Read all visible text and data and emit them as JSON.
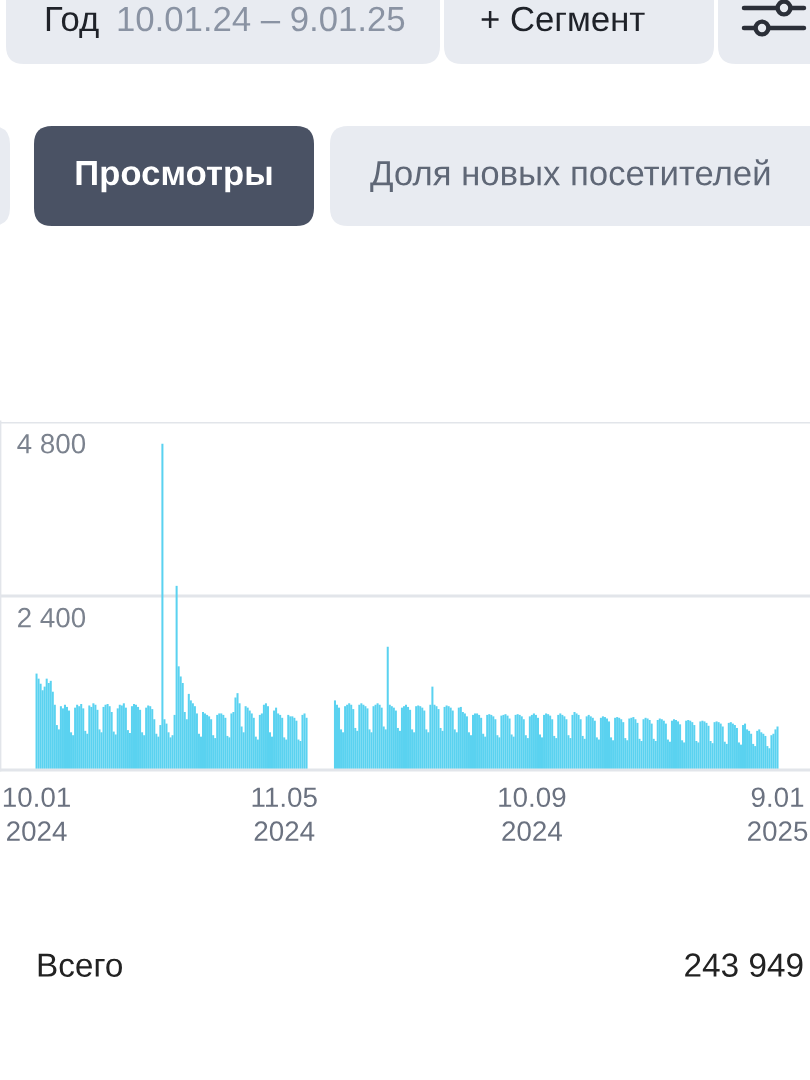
{
  "chart_data": {
    "type": "bar",
    "title": "Просмотры",
    "annotations": [
      "Год",
      "10.01.24 – 9.01.25",
      "+ Сегмент",
      "Доля новых посетителей",
      "Всего",
      "243 949"
    ],
    "x": [
      "2024-01-10",
      "2024-01-11",
      "2024-01-12",
      "2024-01-13",
      "2024-01-14",
      "2024-01-15",
      "2024-01-16",
      "2024-01-17",
      "2024-01-18",
      "2024-01-19",
      "2024-01-20",
      "2024-01-21",
      "2024-01-22",
      "2024-01-23",
      "2024-01-24",
      "2024-01-25",
      "2024-01-26",
      "2024-01-27",
      "2024-01-28",
      "2024-01-29",
      "2024-01-30",
      "2024-01-31",
      "2024-02-01",
      "2024-02-02",
      "2024-02-03",
      "2024-02-04",
      "2024-02-05",
      "2024-02-06",
      "2024-02-07",
      "2024-02-08",
      "2024-02-09",
      "2024-02-10",
      "2024-02-11",
      "2024-02-12",
      "2024-02-13",
      "2024-02-14",
      "2024-02-15",
      "2024-02-16",
      "2024-02-17",
      "2024-02-18",
      "2024-02-19",
      "2024-02-20",
      "2024-02-21",
      "2024-02-22",
      "2024-02-23",
      "2024-02-24",
      "2024-02-25",
      "2024-02-26",
      "2024-02-27",
      "2024-02-28",
      "2024-02-29",
      "2024-03-01",
      "2024-03-02",
      "2024-03-03",
      "2024-03-04",
      "2024-03-05",
      "2024-03-06",
      "2024-03-07",
      "2024-03-08",
      "2024-03-09",
      "2024-03-10",
      "2024-03-11",
      "2024-03-12",
      "2024-03-13",
      "2024-03-14",
      "2024-03-15",
      "2024-03-16",
      "2024-03-17",
      "2024-03-18",
      "2024-03-19",
      "2024-03-20",
      "2024-03-21",
      "2024-03-22",
      "2024-03-23",
      "2024-03-24",
      "2024-03-25",
      "2024-03-26",
      "2024-03-27",
      "2024-03-28",
      "2024-03-29",
      "2024-03-30",
      "2024-03-31",
      "2024-04-01",
      "2024-04-02",
      "2024-04-03",
      "2024-04-04",
      "2024-04-05",
      "2024-04-06",
      "2024-04-07",
      "2024-04-08",
      "2024-04-09",
      "2024-04-10",
      "2024-04-11",
      "2024-04-12",
      "2024-04-13",
      "2024-04-14",
      "2024-04-15",
      "2024-04-16",
      "2024-04-17",
      "2024-04-18",
      "2024-04-19",
      "2024-04-20",
      "2024-04-21",
      "2024-04-22",
      "2024-04-23",
      "2024-04-24",
      "2024-04-25",
      "2024-04-26",
      "2024-04-27",
      "2024-04-28",
      "2024-04-29",
      "2024-04-30",
      "2024-05-01",
      "2024-05-02",
      "2024-05-03",
      "2024-05-04",
      "2024-05-05",
      "2024-05-06",
      "2024-05-07",
      "2024-05-08",
      "2024-05-09",
      "2024-05-10",
      "2024-05-11",
      "2024-05-12",
      "2024-05-13",
      "2024-05-14",
      "2024-05-15",
      "2024-05-16",
      "2024-05-17",
      "2024-05-18",
      "2024-05-19",
      "2024-05-20",
      "2024-05-21",
      "2024-05-22",
      "2024-05-23",
      "2024-05-24",
      "2024-05-25",
      "2024-05-26",
      "2024-05-27",
      "2024-05-28",
      "2024-05-29",
      "2024-05-30",
      "2024-05-31",
      "2024-06-01",
      "2024-06-02",
      "2024-06-03",
      "2024-06-04",
      "2024-06-05",
      "2024-06-06",
      "2024-06-07",
      "2024-06-08",
      "2024-06-09",
      "2024-06-10",
      "2024-06-11",
      "2024-06-12",
      "2024-06-13",
      "2024-06-14",
      "2024-06-15",
      "2024-06-16",
      "2024-06-17",
      "2024-06-18",
      "2024-06-19",
      "2024-06-20",
      "2024-06-21",
      "2024-06-22",
      "2024-06-23",
      "2024-06-24",
      "2024-06-25",
      "2024-06-26",
      "2024-06-27",
      "2024-06-28",
      "2024-06-29",
      "2024-06-30",
      "2024-07-01",
      "2024-07-02",
      "2024-07-03",
      "2024-07-04",
      "2024-07-05",
      "2024-07-06",
      "2024-07-07",
      "2024-07-08",
      "2024-07-09",
      "2024-07-10",
      "2024-07-11",
      "2024-07-12",
      "2024-07-13",
      "2024-07-14",
      "2024-07-15",
      "2024-07-16",
      "2024-07-17",
      "2024-07-18",
      "2024-07-19",
      "2024-07-20",
      "2024-07-21",
      "2024-07-22",
      "2024-07-23",
      "2024-07-24",
      "2024-07-25",
      "2024-07-26",
      "2024-07-27",
      "2024-07-28",
      "2024-07-29",
      "2024-07-30",
      "2024-07-31",
      "2024-08-01",
      "2024-08-02",
      "2024-08-03",
      "2024-08-04",
      "2024-08-05",
      "2024-08-06",
      "2024-08-07",
      "2024-08-08",
      "2024-08-09",
      "2024-08-10",
      "2024-08-11",
      "2024-08-12",
      "2024-08-13",
      "2024-08-14",
      "2024-08-15",
      "2024-08-16",
      "2024-08-17",
      "2024-08-18",
      "2024-08-19",
      "2024-08-20",
      "2024-08-21",
      "2024-08-22",
      "2024-08-23",
      "2024-08-24",
      "2024-08-25",
      "2024-08-26",
      "2024-08-27",
      "2024-08-28",
      "2024-08-29",
      "2024-08-30",
      "2024-08-31",
      "2024-09-01",
      "2024-09-02",
      "2024-09-03",
      "2024-09-04",
      "2024-09-05",
      "2024-09-06",
      "2024-09-07",
      "2024-09-08",
      "2024-09-09",
      "2024-09-10",
      "2024-09-11",
      "2024-09-12",
      "2024-09-13",
      "2024-09-14",
      "2024-09-15",
      "2024-09-16",
      "2024-09-17",
      "2024-09-18",
      "2024-09-19",
      "2024-09-20",
      "2024-09-21",
      "2024-09-22",
      "2024-09-23",
      "2024-09-24",
      "2024-09-25",
      "2024-09-26",
      "2024-09-27",
      "2024-09-28",
      "2024-09-29",
      "2024-09-30",
      "2024-10-01",
      "2024-10-02",
      "2024-10-03",
      "2024-10-04",
      "2024-10-05",
      "2024-10-06",
      "2024-10-07",
      "2024-10-08",
      "2024-10-09",
      "2024-10-10",
      "2024-10-11",
      "2024-10-12",
      "2024-10-13",
      "2024-10-14",
      "2024-10-15",
      "2024-10-16",
      "2024-10-17",
      "2024-10-18",
      "2024-10-19",
      "2024-10-20",
      "2024-10-21",
      "2024-10-22",
      "2024-10-23",
      "2024-10-24",
      "2024-10-25",
      "2024-10-26",
      "2024-10-27",
      "2024-10-28",
      "2024-10-29",
      "2024-10-30",
      "2024-10-31",
      "2024-11-01",
      "2024-11-02",
      "2024-11-03",
      "2024-11-04",
      "2024-11-05",
      "2024-11-06",
      "2024-11-07",
      "2024-11-08",
      "2024-11-09",
      "2024-11-10",
      "2024-11-11",
      "2024-11-12",
      "2024-11-13",
      "2024-11-14",
      "2024-11-15",
      "2024-11-16",
      "2024-11-17",
      "2024-11-18",
      "2024-11-19",
      "2024-11-20",
      "2024-11-21",
      "2024-11-22",
      "2024-11-23",
      "2024-11-24",
      "2024-11-25",
      "2024-11-26",
      "2024-11-27",
      "2024-11-28",
      "2024-11-29",
      "2024-11-30",
      "2024-12-01",
      "2024-12-02",
      "2024-12-03",
      "2024-12-04",
      "2024-12-05",
      "2024-12-06",
      "2024-12-07",
      "2024-12-08",
      "2024-12-09",
      "2024-12-10",
      "2024-12-11",
      "2024-12-12",
      "2024-12-13",
      "2024-12-14",
      "2024-12-15",
      "2024-12-16",
      "2024-12-17",
      "2024-12-18",
      "2024-12-19",
      "2024-12-20",
      "2024-12-21",
      "2024-12-22",
      "2024-12-23",
      "2024-12-24",
      "2024-12-25",
      "2024-12-26",
      "2024-12-27",
      "2024-12-28",
      "2024-12-29",
      "2024-12-30",
      "2024-12-31",
      "2025-01-01",
      "2025-01-02",
      "2025-01-03",
      "2025-01-04",
      "2025-01-05",
      "2025-01-06",
      "2025-01-07",
      "2025-01-08",
      "2025-01-09"
    ],
    "values": [
      1330,
      1260,
      1190,
      1100,
      1150,
      1260,
      1200,
      1230,
      1080,
      900,
      620,
      560,
      880,
      850,
      900,
      870,
      820,
      520,
      480,
      860,
      900,
      880,
      910,
      850,
      540,
      500,
      890,
      870,
      920,
      900,
      830,
      560,
      520,
      870,
      900,
      910,
      880,
      800,
      530,
      490,
      850,
      900,
      890,
      920,
      860,
      550,
      510,
      880,
      910,
      900,
      870,
      830,
      520,
      480,
      860,
      890,
      880,
      840,
      700,
      500,
      460,
      620,
      4500,
      700,
      640,
      520,
      450,
      480,
      760,
      2540,
      1430,
      1290,
      1200,
      800,
      700,
      1050,
      960,
      920,
      880,
      780,
      500,
      460,
      800,
      780,
      760,
      740,
      700,
      480,
      440,
      760,
      780,
      780,
      760,
      720,
      470,
      450,
      780,
      800,
      1000,
      1060,
      920,
      600,
      520,
      880,
      860,
      820,
      780,
      720,
      460,
      420,
      760,
      780,
      900,
      920,
      880,
      520,
      460,
      820,
      860,
      780,
      760,
      720,
      450,
      420,
      760,
      740,
      740,
      720,
      680,
      420,
      400,
      760,
      780,
      720,
      null,
      null,
      null,
      null,
      null,
      null,
      null,
      null,
      null,
      null,
      null,
      null,
      null,
      960,
      900,
      860,
      560,
      520,
      880,
      900,
      920,
      900,
      840,
      580,
      540,
      900,
      920,
      900,
      880,
      850,
      560,
      520,
      880,
      900,
      920,
      900,
      860,
      600,
      560,
      1700,
      900,
      880,
      860,
      820,
      580,
      540,
      860,
      880,
      900,
      870,
      830,
      560,
      520,
      880,
      890,
      880,
      860,
      820,
      560,
      520,
      900,
      1150,
      900,
      880,
      840,
      580,
      540,
      870,
      890,
      880,
      860,
      820,
      560,
      520,
      860,
      870,
      800,
      780,
      740,
      520,
      480,
      760,
      780,
      780,
      760,
      720,
      500,
      460,
      760,
      770,
      760,
      740,
      700,
      480,
      450,
      750,
      760,
      770,
      750,
      710,
      490,
      460,
      760,
      770,
      760,
      740,
      700,
      480,
      440,
      740,
      760,
      780,
      760,
      720,
      490,
      450,
      760,
      780,
      770,
      750,
      700,
      470,
      440,
      760,
      780,
      760,
      740,
      700,
      480,
      440,
      760,
      800,
      780,
      760,
      700,
      470,
      430,
      740,
      760,
      740,
      720,
      680,
      450,
      420,
      720,
      740,
      730,
      710,
      670,
      450,
      410,
      720,
      730,
      720,
      700,
      660,
      440,
      410,
      710,
      720,
      730,
      700,
      650,
      430,
      400,
      700,
      720,
      710,
      690,
      640,
      430,
      400,
      690,
      710,
      700,
      680,
      640,
      420,
      390,
      680,
      700,
      690,
      670,
      630,
      410,
      380,
      680,
      690,
      680,
      660,
      620,
      400,
      380,
      670,
      680,
      670,
      650,
      610,
      400,
      370,
      660,
      670,
      660,
      640,
      600,
      390,
      360,
      650,
      660,
      640,
      620,
      580,
      380,
      350,
      620,
      640,
      560,
      540,
      500,
      360,
      330,
      540,
      560,
      520,
      500,
      470,
      330,
      300,
      480,
      500,
      560,
      600
    ],
    "color": "#5ad2f0",
    "xlim": [
      "2023-12-23",
      "2025-01-25"
    ],
    "ylim": [
      0,
      4800
    ],
    "xticks": [
      {
        "value": "2024-01-10",
        "label": "10.01\n2024"
      },
      {
        "value": "2024-05-11",
        "label": "11.05\n2024"
      },
      {
        "value": "2024-09-10",
        "label": "10.09\n2024"
      },
      {
        "value": "2025-01-09",
        "label": "9.01\n2025"
      }
    ],
    "yticks": [
      {
        "value": 2400,
        "label": "2 400"
      },
      {
        "value": 4800,
        "label": "4 800"
      }
    ],
    "grid": "y"
  }
}
